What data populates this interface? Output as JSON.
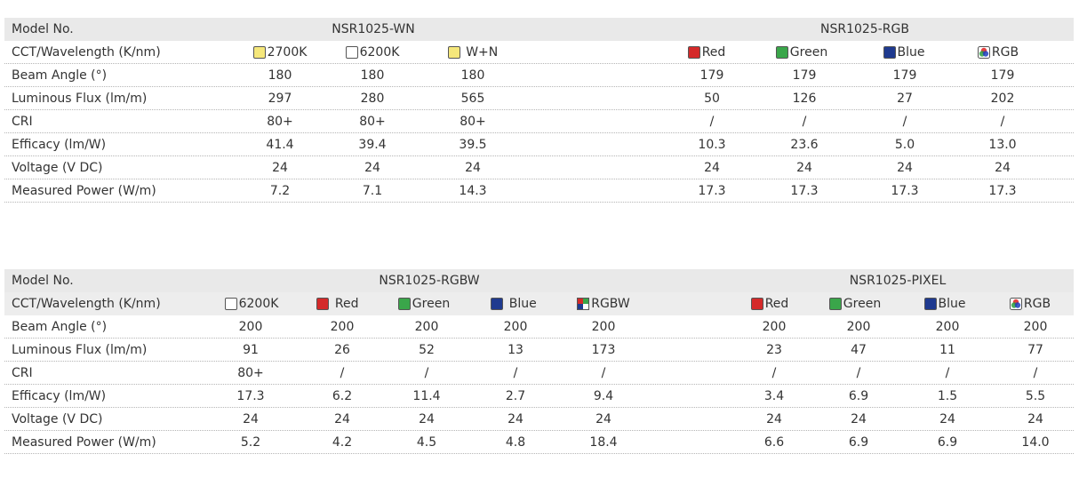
{
  "colors": {
    "header_bg": "#e9e9e9",
    "yellow_swatch": "#f5e77b",
    "white_swatch": "#ffffff",
    "red_swatch": "#d42a2a",
    "green_swatch": "#3aa64a",
    "blue_swatch": "#1f3a8f"
  },
  "table1": {
    "model_label": "Model No.",
    "group1_title": "NSR1025-WN",
    "group2_title": "NSR1025-RGB",
    "row_labels": [
      "CCT/Wavelength (K/nm)",
      "Beam Angle (°)",
      "Luminous Flux (lm/m)",
      "CRI",
      "Efficacy (lm/W)",
      "Voltage (V DC)",
      "Measured Power (W/m)"
    ],
    "columns": [
      {
        "swatch": "yellow-swatch",
        "header": "2700K",
        "beam": "180",
        "flux": "297",
        "cri": "80+",
        "efficacy": "41.4",
        "voltage": "24",
        "power": "7.2"
      },
      {
        "swatch": "white-swatch",
        "header": "6200K",
        "beam": "180",
        "flux": "280",
        "cri": "80+",
        "efficacy": "39.4",
        "voltage": "24",
        "power": "7.1"
      },
      {
        "swatch": "yellow-swatch",
        "header": "W+N",
        "beam": "180",
        "flux": "565",
        "cri": "80+",
        "efficacy": "39.5",
        "voltage": "24",
        "power": "14.3"
      },
      {
        "swatch": "red-swatch",
        "header": "Red",
        "beam": "179",
        "flux": "50",
        "cri": "/",
        "efficacy": "10.3",
        "voltage": "24",
        "power": "17.3"
      },
      {
        "swatch": "green-swatch",
        "header": "Green",
        "beam": "179",
        "flux": "126",
        "cri": "/",
        "efficacy": "23.6",
        "voltage": "24",
        "power": "17.3"
      },
      {
        "swatch": "blue-swatch",
        "header": "Blue",
        "beam": "179",
        "flux": "27",
        "cri": "/",
        "efficacy": "5.0",
        "voltage": "24",
        "power": "17.3"
      },
      {
        "swatch": "rgb-swatch",
        "header": "RGB",
        "beam": "179",
        "flux": "202",
        "cri": "/",
        "efficacy": "13.0",
        "voltage": "24",
        "power": "17.3"
      }
    ]
  },
  "table2": {
    "model_label": "Model No.",
    "group1_title": "NSR1025-RGBW",
    "group2_title": "NSR1025-PIXEL",
    "row_labels": [
      "CCT/Wavelength (K/nm)",
      "Beam Angle (°)",
      "Luminous Flux (lm/m)",
      "CRI",
      "Efficacy (lm/W)",
      "Voltage (V DC)",
      "Measured Power (W/m)"
    ],
    "columns": [
      {
        "swatch": "white-swatch",
        "header": "6200K",
        "beam": "200",
        "flux": "91",
        "cri": "80+",
        "efficacy": "17.3",
        "voltage": "24",
        "power": "5.2"
      },
      {
        "swatch": "red-swatch",
        "header": "Red",
        "beam": "200",
        "flux": "26",
        "cri": "/",
        "efficacy": "6.2",
        "voltage": "24",
        "power": "4.2"
      },
      {
        "swatch": "green-swatch",
        "header": "Green",
        "beam": "200",
        "flux": "52",
        "cri": "/",
        "efficacy": "11.4",
        "voltage": "24",
        "power": "4.5"
      },
      {
        "swatch": "blue-swatch",
        "header": "Blue",
        "beam": "200",
        "flux": "13",
        "cri": "/",
        "efficacy": "2.7",
        "voltage": "24",
        "power": "4.8"
      },
      {
        "swatch": "rgbw-swatch",
        "header": "RGBW",
        "beam": "200",
        "flux": "173",
        "cri": "/",
        "efficacy": "9.4",
        "voltage": "24",
        "power": "18.4"
      },
      {
        "swatch": "red-swatch",
        "header": "Red",
        "beam": "200",
        "flux": "23",
        "cri": "/",
        "efficacy": "3.4",
        "voltage": "24",
        "power": "6.6"
      },
      {
        "swatch": "green-swatch",
        "header": "Green",
        "beam": "200",
        "flux": "47",
        "cri": "/",
        "efficacy": "6.9",
        "voltage": "24",
        "power": "6.9"
      },
      {
        "swatch": "blue-swatch",
        "header": "Blue",
        "beam": "200",
        "flux": "11",
        "cri": "/",
        "efficacy": "1.5",
        "voltage": "24",
        "power": "6.9"
      },
      {
        "swatch": "rgb-swatch",
        "header": "RGB",
        "beam": "200",
        "flux": "77",
        "cri": "/",
        "efficacy": "5.5",
        "voltage": "24",
        "power": "14.0"
      }
    ]
  }
}
